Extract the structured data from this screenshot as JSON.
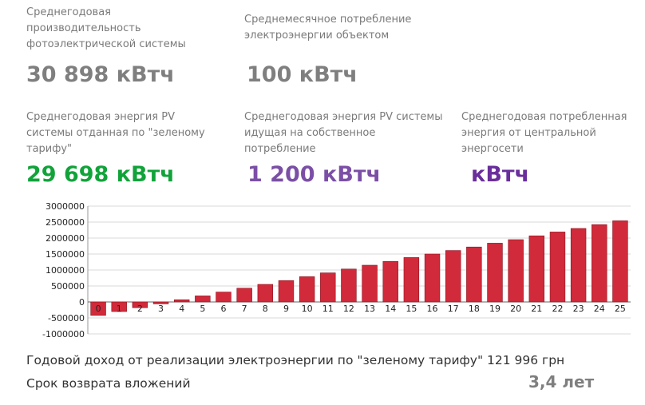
{
  "cards": {
    "annual_production_label": "Среднегодовая производительность фотоэлектрической системы",
    "annual_production_value": "30 898 кВтч",
    "monthly_consumption_label": "Среднемесячное потребление электроэнергии объектом",
    "monthly_consumption_value": "100 кВтч",
    "green_tariff_label": "Среднегодовая энергия PV системы отданная по \"зеленому тарифу\"",
    "green_tariff_value": "29 698 кВтч",
    "self_consumption_label": "Среднегодовая энергия PV системы идущая на собственное потребление",
    "self_consumption_value": "1 200 кВтч",
    "grid_consumption_label": "Среднегодовая потребленная энергия от центральной энергосети",
    "grid_consumption_value": "кВтч"
  },
  "colors": {
    "gray_value": "#7f7f7f",
    "green_value": "#11a33a",
    "purple_value": "#7b4fa6",
    "bar_fill": "#d12a3a"
  },
  "chart_data": {
    "type": "bar",
    "categories": [
      "0",
      "1",
      "2",
      "3",
      "4",
      "5",
      "6",
      "7",
      "8",
      "9",
      "10",
      "11",
      "12",
      "13",
      "14",
      "15",
      "16",
      "17",
      "18",
      "19",
      "20",
      "21",
      "22",
      "23",
      "24",
      "25"
    ],
    "values": [
      -420000,
      -300000,
      -180000,
      -60000,
      70000,
      190000,
      310000,
      430000,
      550000,
      670000,
      790000,
      910000,
      1030000,
      1150000,
      1270000,
      1390000,
      1500000,
      1610000,
      1720000,
      1840000,
      1950000,
      2070000,
      2190000,
      2300000,
      2420000,
      2540000
    ],
    "ylim": [
      -1000000,
      3000000
    ],
    "yticks": [
      "3000000",
      "2500000",
      "2000000",
      "1500000",
      "1000000",
      "500000",
      "0",
      "-500000",
      "-1000000"
    ],
    "ytick_values": [
      3000000,
      2500000,
      2000000,
      1500000,
      1000000,
      500000,
      0,
      -500000,
      -1000000
    ],
    "grid": true
  },
  "footer": {
    "annual_income_text": "Годовой доход от реализации электроэнергии по \"зеленому тарифу\" 121 996 грн",
    "payback_label": "Срок возврата вложений",
    "payback_value": "3,4 лет"
  }
}
